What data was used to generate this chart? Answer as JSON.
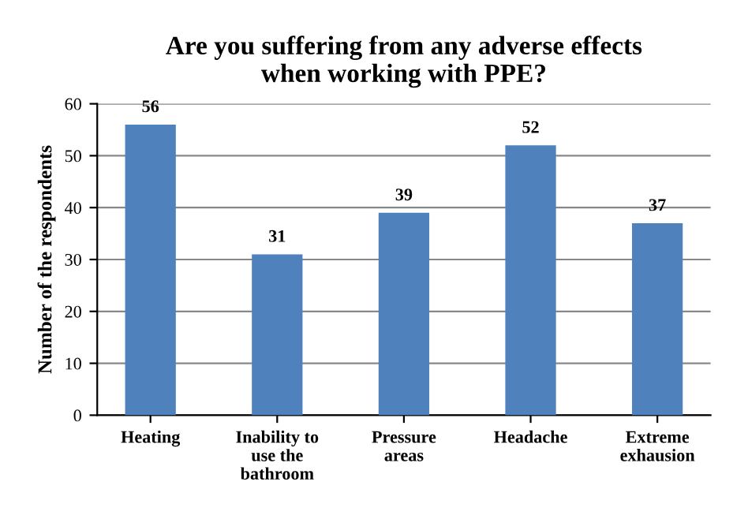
{
  "chart_data": {
    "type": "bar",
    "title": "Are you suffering from any adverse effects\nwhen working with PPE?",
    "ylabel": "Number of the respondents",
    "categories": [
      "Heating",
      "Inability to\nuse the\nbathroom",
      "Pressure\nareas",
      "Headache",
      "Extreme\nexhausion"
    ],
    "values": [
      56,
      31,
      39,
      52,
      37
    ],
    "color": "#4f81bd",
    "ylim": [
      0,
      60
    ],
    "yticks": [
      0,
      10,
      20,
      30,
      40,
      50,
      60
    ],
    "grid": "y",
    "data_labels": true,
    "legend": false
  }
}
